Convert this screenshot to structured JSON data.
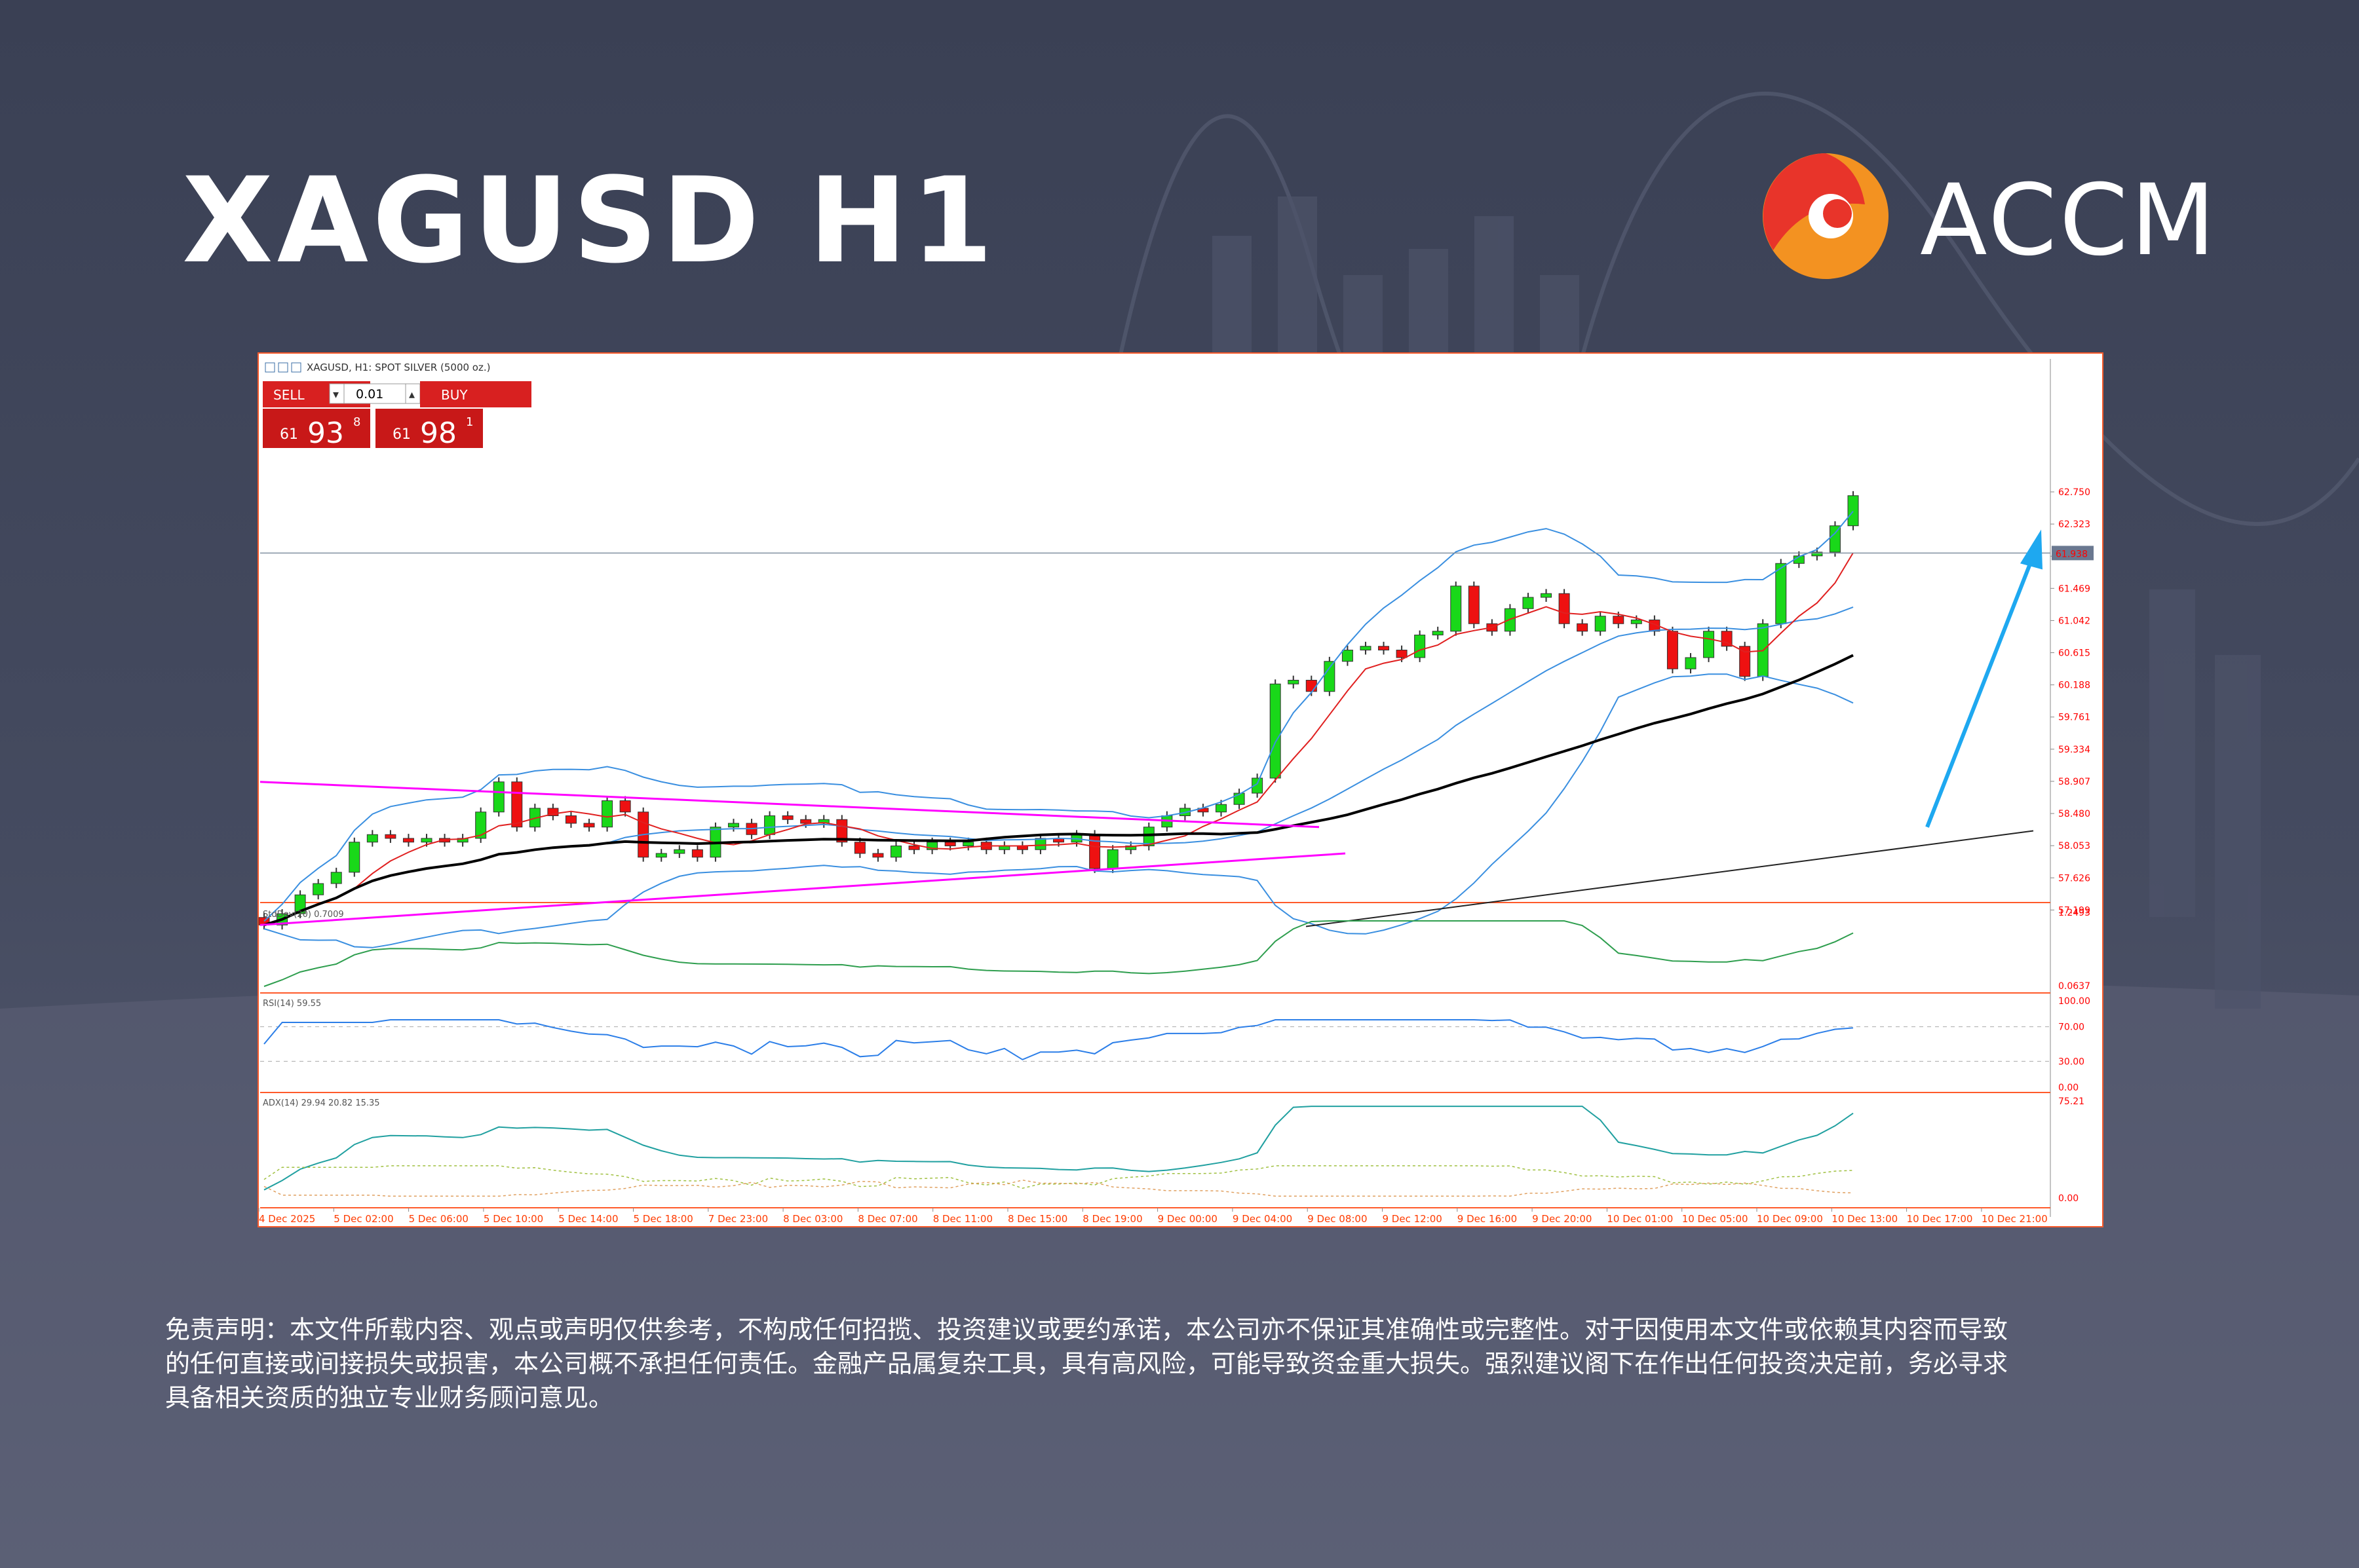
{
  "header": {
    "title": "XAGUSD H1",
    "brand": "ACCM",
    "brand_colors": {
      "primary": "#e8342a",
      "secondary": "#f5a623"
    }
  },
  "terminal": {
    "symbol_line": "XAGUSD, H1:  SPOT SILVER (5000 oz.)",
    "sell_label": "SELL",
    "buy_label": "BUY",
    "lot": "0.01",
    "sell_price": {
      "prefix": "61",
      "big": "93",
      "sup": "8"
    },
    "buy_price": {
      "prefix": "61",
      "big": "98",
      "sup": "1"
    },
    "price_tag": "61.938"
  },
  "indicators": {
    "stddev": "StdDev(20) 0.7009",
    "rsi": "RSI(14) 59.55",
    "adx": "ADX(14) 29.94 20.82 15.35"
  },
  "chart_data": {
    "type": "candlestick",
    "symbol": "XAGUSD",
    "timeframe": "H1",
    "price_axis": [
      "62.750",
      "62.323",
      "61.896",
      "61.469",
      "61.042",
      "60.615",
      "60.188",
      "59.761",
      "59.334",
      "58.907",
      "58.480",
      "58.053",
      "57.626",
      "57.199"
    ],
    "ylim": [
      56.95,
      62.95
    ],
    "time_labels": [
      "4 Dec 2025",
      "5 Dec 02:00",
      "5 Dec 06:00",
      "5 Dec 10:00",
      "5 Dec 14:00",
      "5 Dec 18:00",
      "7 Dec 23:00",
      "8 Dec 03:00",
      "8 Dec 07:00",
      "8 Dec 11:00",
      "8 Dec 15:00",
      "8 Dec 19:00",
      "9 Dec 00:00",
      "9 Dec 04:00",
      "9 Dec 08:00",
      "9 Dec 12:00",
      "9 Dec 16:00",
      "9 Dec 20:00",
      "10 Dec 01:00",
      "10 Dec 05:00",
      "10 Dec 09:00",
      "10 Dec 13:00",
      "10 Dec 17:00",
      "10 Dec 21:00"
    ],
    "candles_oc": [
      [
        57.1,
        57.0
      ],
      [
        57.0,
        57.15
      ],
      [
        57.15,
        57.4
      ],
      [
        57.4,
        57.55
      ],
      [
        57.55,
        57.7
      ],
      [
        57.7,
        58.1
      ],
      [
        58.1,
        58.2
      ],
      [
        58.2,
        58.15
      ],
      [
        58.15,
        58.1
      ],
      [
        58.1,
        58.15
      ],
      [
        58.15,
        58.1
      ],
      [
        58.1,
        58.15
      ],
      [
        58.15,
        58.5
      ],
      [
        58.5,
        58.9
      ],
      [
        58.9,
        58.3
      ],
      [
        58.3,
        58.55
      ],
      [
        58.55,
        58.45
      ],
      [
        58.45,
        58.35
      ],
      [
        58.35,
        58.3
      ],
      [
        58.3,
        58.65
      ],
      [
        58.65,
        58.5
      ],
      [
        58.5,
        57.9
      ],
      [
        57.9,
        57.95
      ],
      [
        57.95,
        58.0
      ],
      [
        58.0,
        57.9
      ],
      [
        57.9,
        58.3
      ],
      [
        58.3,
        58.35
      ],
      [
        58.35,
        58.2
      ],
      [
        58.2,
        58.45
      ],
      [
        58.45,
        58.4
      ],
      [
        58.4,
        58.35
      ],
      [
        58.35,
        58.4
      ],
      [
        58.4,
        58.1
      ],
      [
        58.1,
        57.95
      ],
      [
        57.95,
        57.9
      ],
      [
        57.9,
        58.05
      ],
      [
        58.05,
        58.0
      ],
      [
        58.0,
        58.1
      ],
      [
        58.1,
        58.05
      ],
      [
        58.05,
        58.1
      ],
      [
        58.1,
        58.0
      ],
      [
        58.0,
        58.05
      ],
      [
        58.05,
        58.0
      ],
      [
        58.0,
        58.15
      ],
      [
        58.15,
        58.1
      ],
      [
        58.1,
        58.2
      ],
      [
        58.2,
        57.75
      ],
      [
        57.75,
        58.0
      ],
      [
        58.0,
        58.05
      ],
      [
        58.05,
        58.3
      ],
      [
        58.3,
        58.45
      ],
      [
        58.45,
        58.55
      ],
      [
        58.55,
        58.5
      ],
      [
        58.5,
        58.6
      ],
      [
        58.6,
        58.75
      ],
      [
        58.75,
        58.95
      ],
      [
        58.95,
        60.2
      ],
      [
        60.2,
        60.25
      ],
      [
        60.25,
        60.1
      ],
      [
        60.1,
        60.5
      ],
      [
        60.5,
        60.65
      ],
      [
        60.65,
        60.7
      ],
      [
        60.7,
        60.65
      ],
      [
        60.65,
        60.55
      ],
      [
        60.55,
        60.85
      ],
      [
        60.85,
        60.9
      ],
      [
        60.9,
        61.5
      ],
      [
        61.5,
        61.0
      ],
      [
        61.0,
        60.9
      ],
      [
        60.9,
        61.2
      ],
      [
        61.2,
        61.35
      ],
      [
        61.35,
        61.4
      ],
      [
        61.4,
        61.0
      ],
      [
        61.0,
        60.9
      ],
      [
        60.9,
        61.1
      ],
      [
        61.1,
        61.0
      ],
      [
        61.0,
        61.05
      ],
      [
        61.05,
        60.9
      ],
      [
        60.9,
        60.4
      ],
      [
        60.4,
        60.55
      ],
      [
        60.55,
        60.9
      ],
      [
        60.9,
        60.7
      ],
      [
        60.7,
        60.3
      ],
      [
        60.3,
        61.0
      ],
      [
        61.0,
        61.8
      ],
      [
        61.8,
        61.9
      ],
      [
        61.9,
        61.95
      ],
      [
        61.95,
        62.3
      ],
      [
        62.3,
        62.7
      ]
    ],
    "series": [
      {
        "name": "StdDev(20)",
        "value": 0.7009
      },
      {
        "name": "RSI(14)",
        "value": 59.55
      },
      {
        "name": "ADX(14)",
        "values": [
          29.94,
          20.82,
          15.35
        ]
      }
    ],
    "stddev_axis": [
      "1.2493",
      "0.0637"
    ],
    "rsi_axis": [
      "100.00",
      "70.00",
      "30.00",
      "0.00"
    ],
    "adx_axis": [
      "75.21",
      "0.00"
    ],
    "grid": false
  },
  "disclaimer": [
    "免责声明：本文件所载内容、观点或声明仅供参考，不构成任何招揽、投资建议或要约承诺，本公司亦不保证其准确性或完整性。对于因使用本文件或依赖其内容而导致",
    "的任何直接或间接损失或损害，本公司概不承担任何责任。金融产品属复杂工具，具有高风险，可能导致资金重大损失。强烈建议阁下在作出任何投资决定前，务必寻求",
    "具备相关资质的独立专业财务顾问意见。"
  ]
}
